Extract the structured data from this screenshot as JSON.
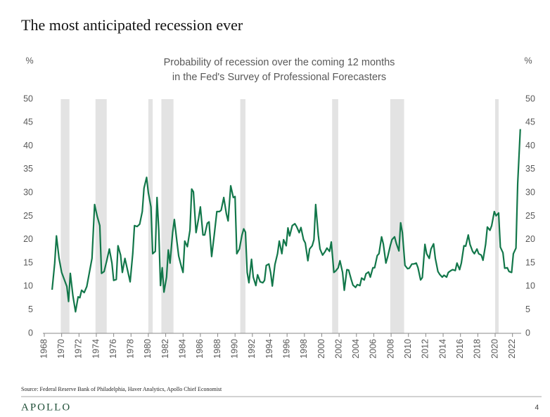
{
  "chart_data": {
    "type": "line",
    "title": "The most anticipated recession ever",
    "subtitle": [
      "Probability of recession over the coming 12 months",
      "in the Fed's Survey of Professional Forecasters"
    ],
    "ylabel": "%",
    "y2label": "%",
    "source": "Source: Federal Reserve Bank of Philadelphia, Haver Analytics, Apollo Chief Economist",
    "brand": "APOLLO",
    "page_number": "4",
    "xlim": [
      1968,
      2023
    ],
    "xticks": [
      1968,
      1970,
      1972,
      1974,
      1976,
      1978,
      1980,
      1982,
      1984,
      1986,
      1988,
      1990,
      1992,
      1994,
      1996,
      1998,
      2000,
      2002,
      2004,
      2006,
      2008,
      2010,
      2012,
      2014,
      2016,
      2018,
      2020,
      2022
    ],
    "ylim": [
      0,
      50
    ],
    "yticks": [
      0,
      5,
      10,
      15,
      20,
      25,
      30,
      35,
      40,
      45,
      50
    ],
    "y2lim": [
      0,
      50
    ],
    "y2ticks": [
      0,
      5,
      10,
      15,
      20,
      25,
      30,
      35,
      40,
      45,
      50
    ],
    "recession_color": "#e3e3e3",
    "recessions": [
      [
        1969.9,
        1970.9
      ],
      [
        1973.9,
        1975.2
      ],
      [
        1980.0,
        1980.5
      ],
      [
        1981.5,
        1982.9
      ],
      [
        1990.6,
        1991.2
      ],
      [
        2001.2,
        2001.9
      ],
      [
        2007.9,
        2009.5
      ],
      [
        2020.0,
        2020.4
      ]
    ],
    "series": [
      {
        "name": "Probability of recession",
        "color": "#12774a",
        "x": [
          1968.9,
          1969.2,
          1969.4,
          1969.7,
          1970.0,
          1970.3,
          1970.6,
          1970.8,
          1971.0,
          1971.3,
          1971.6,
          1971.9,
          1972.1,
          1972.3,
          1972.6,
          1972.9,
          1973.2,
          1973.5,
          1973.8,
          1974.1,
          1974.4,
          1974.6,
          1974.9,
          1975.2,
          1975.5,
          1975.8,
          1976.0,
          1976.3,
          1976.5,
          1976.8,
          1977.0,
          1977.3,
          1977.6,
          1977.9,
          1978.2,
          1978.4,
          1978.7,
          1979.0,
          1979.3,
          1979.5,
          1979.8,
          1980.0,
          1980.3,
          1980.5,
          1980.8,
          1981.0,
          1981.2,
          1981.4,
          1981.6,
          1981.8,
          1982.1,
          1982.3,
          1982.5,
          1982.8,
          1983.0,
          1983.3,
          1983.5,
          1983.8,
          1984.0,
          1984.2,
          1984.5,
          1984.8,
          1985.0,
          1985.2,
          1985.5,
          1985.8,
          1986.0,
          1986.3,
          1986.5,
          1986.8,
          1987.0,
          1987.3,
          1987.6,
          1987.9,
          1988.2,
          1988.4,
          1988.7,
          1989.0,
          1989.2,
          1989.5,
          1989.8,
          1990.0,
          1990.2,
          1990.5,
          1990.8,
          1991.0,
          1991.2,
          1991.4,
          1991.6,
          1991.9,
          1992.1,
          1992.4,
          1992.6,
          1992.9,
          1993.2,
          1993.4,
          1993.6,
          1993.9,
          1994.1,
          1994.3,
          1994.6,
          1994.9,
          1995.1,
          1995.4,
          1995.6,
          1995.9,
          1996.1,
          1996.3,
          1996.6,
          1996.9,
          1997.1,
          1997.4,
          1997.6,
          1997.9,
          1998.1,
          1998.4,
          1998.6,
          1998.9,
          1999.1,
          1999.3,
          1999.6,
          1999.8,
          2000.1,
          2000.4,
          2000.6,
          2000.9,
          2001.1,
          2001.4,
          2001.6,
          2001.9,
          2002.1,
          2002.4,
          2002.6,
          2002.9,
          2003.1,
          2003.4,
          2003.6,
          2003.9,
          2004.1,
          2004.4,
          2004.6,
          2004.9,
          2005.1,
          2005.4,
          2005.6,
          2005.9,
          2006.1,
          2006.4,
          2006.6,
          2006.9,
          2007.1,
          2007.4,
          2007.6,
          2007.9,
          2008.1,
          2008.4,
          2008.6,
          2008.9,
          2009.1,
          2009.3,
          2009.6,
          2009.9,
          2010.1,
          2010.4,
          2010.6,
          2010.9,
          2011.1,
          2011.4,
          2011.6,
          2011.9,
          2012.1,
          2012.4,
          2012.6,
          2012.9,
          2013.1,
          2013.4,
          2013.6,
          2013.9,
          2014.1,
          2014.4,
          2014.6,
          2014.9,
          2015.1,
          2015.4,
          2015.6,
          2015.9,
          2016.1,
          2016.4,
          2016.6,
          2016.9,
          2017.1,
          2017.4,
          2017.6,
          2017.9,
          2018.1,
          2018.4,
          2018.6,
          2018.9,
          2019.1,
          2019.4,
          2019.6,
          2019.9,
          2020.1,
          2020.4,
          2020.6,
          2020.9,
          2021.1,
          2021.4,
          2021.6,
          2021.9,
          2022.1,
          2022.4,
          2022.6,
          2022.9
        ],
        "values": [
          9.3,
          15,
          20.8,
          16,
          13,
          11.5,
          10,
          6.8,
          12.8,
          8,
          4.6,
          7.8,
          7.6,
          9.2,
          8.7,
          10,
          13,
          16,
          27.5,
          25,
          23,
          12.8,
          13.2,
          15.5,
          18,
          15,
          11.3,
          11.5,
          18.7,
          16.7,
          13,
          16,
          13.5,
          11,
          17,
          23,
          22.8,
          23.3,
          26,
          31,
          33.3,
          30,
          27,
          17,
          17.5,
          29,
          22,
          10.2,
          14,
          8.8,
          12,
          17.8,
          15,
          21.5,
          24.3,
          19.5,
          16.5,
          14.3,
          13,
          19.7,
          18.5,
          22,
          30.8,
          30.2,
          21.5,
          24.6,
          27,
          21,
          21,
          23.5,
          23.8,
          16.4,
          21,
          26,
          26,
          26.3,
          29,
          25.5,
          24,
          31.5,
          29,
          29.2,
          17,
          18,
          21,
          22.3,
          21.6,
          13,
          10.8,
          15.8,
          12,
          10.2,
          12.5,
          11,
          10.8,
          11.3,
          14.5,
          14.8,
          13,
          10.1,
          14.7,
          17,
          19.7,
          17,
          20,
          18.7,
          22.5,
          20.8,
          23,
          23.4,
          22.8,
          21.5,
          22.6,
          20,
          19.3,
          15.5,
          18,
          18.7,
          20,
          27.5,
          21,
          18,
          16.7,
          17.5,
          18.2,
          17.5,
          19.5,
          13,
          13.3,
          14,
          15.5,
          13,
          9.2,
          13.6,
          13.5,
          11.5,
          10.3,
          9.8,
          10.4,
          10.2,
          11.8,
          11.4,
          12.7,
          13.1,
          12,
          14,
          14,
          16.6,
          17,
          20.6,
          19.1,
          15,
          16.3,
          18.7,
          20,
          20.6,
          19.2,
          17.6,
          23.6,
          21.5,
          14.5,
          13.8,
          13.9,
          14.8,
          14.8,
          15,
          14,
          11.4,
          11.9,
          19,
          17,
          16,
          18,
          19.1,
          16,
          13.2,
          12.6,
          12,
          12.4,
          12,
          13,
          13.4,
          13.6,
          13.4,
          15,
          13.6,
          15,
          18.7,
          18.6,
          21,
          19,
          17.5,
          17,
          18,
          17,
          16.7,
          15.6,
          19,
          22.7,
          22,
          23,
          26,
          25.1,
          25.7,
          18.4,
          17.2,
          13.9,
          14,
          13.2,
          13,
          17,
          18.2,
          32,
          43.6
        ]
      }
    ]
  }
}
